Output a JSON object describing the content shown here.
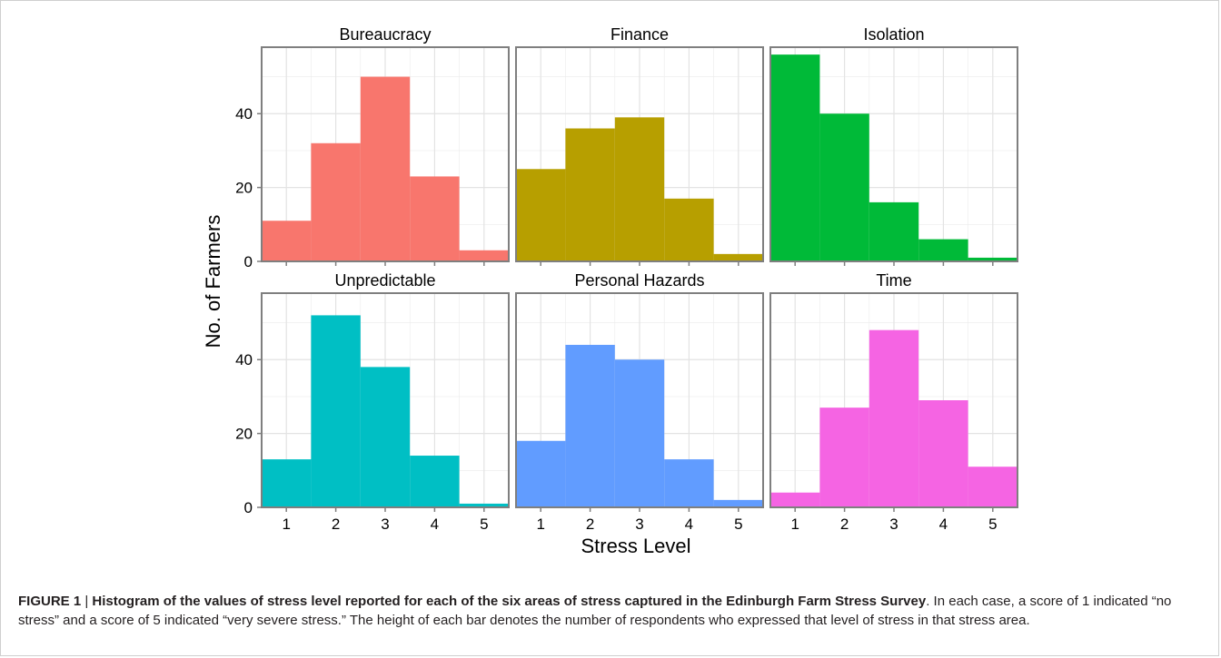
{
  "chart_data": {
    "type": "bar",
    "layout": "facet-grid 2x3",
    "xlabel": "Stress Level",
    "ylabel": "No. of Farmers",
    "x_ticks": [
      "1",
      "2",
      "3",
      "4",
      "5"
    ],
    "x": [
      1,
      2,
      3,
      4,
      5
    ],
    "xlim": [
      0.5,
      5.5
    ],
    "ylim": [
      0,
      58
    ],
    "y_ticks": [
      "0",
      "20",
      "40"
    ],
    "y_tick_values": [
      0,
      20,
      40
    ],
    "grid": true,
    "facets": [
      {
        "name": "Bureaucracy",
        "values": [
          11,
          32,
          50,
          23,
          3
        ],
        "color": "#F8766D"
      },
      {
        "name": "Finance",
        "values": [
          25,
          36,
          39,
          17,
          2
        ],
        "color": "#B79F00"
      },
      {
        "name": "Isolation",
        "values": [
          56,
          40,
          16,
          6,
          1
        ],
        "color": "#00BA38"
      },
      {
        "name": "Unpredictable",
        "values": [
          13,
          52,
          38,
          14,
          1
        ],
        "color": "#00BFC4"
      },
      {
        "name": "Personal Hazards",
        "values": [
          18,
          44,
          40,
          13,
          2
        ],
        "color": "#619CFF"
      },
      {
        "name": "Time",
        "values": [
          4,
          27,
          48,
          29,
          11
        ],
        "color": "#F564E3"
      }
    ]
  },
  "caption": {
    "label": "FIGURE 1",
    "separator": " | ",
    "title": "Histogram of the values of stress level reported for each of the six areas of stress captured in the Edinburgh Farm Stress Survey",
    "body": ". In each case, a score of 1 indicated “no stress” and a score of 5 indicated “very severe stress.” The height of each bar denotes the number of respondents who expressed that level of stress in that stress area."
  },
  "colors": {
    "panel_border": "#7f7f7f",
    "grid": "#ebebeb",
    "text": "#000000"
  }
}
